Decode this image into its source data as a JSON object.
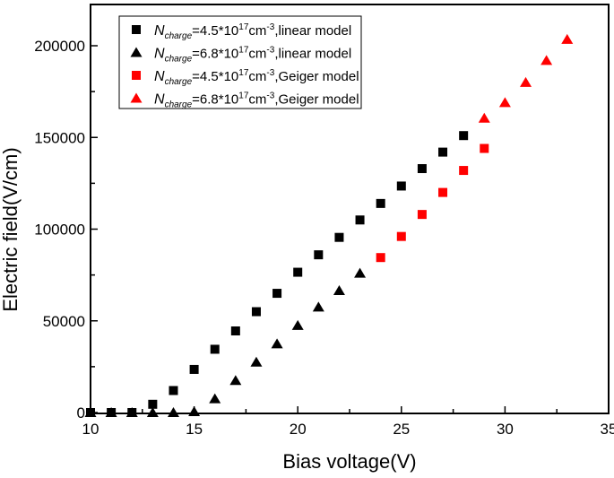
{
  "chart_data": {
    "type": "scatter",
    "title": "",
    "xlabel": "Bias voltage(V)",
    "ylabel": "Electric field(V/cm)",
    "xlim": [
      10,
      35
    ],
    "ylim": [
      0,
      200000
    ],
    "xticks": [
      10,
      15,
      20,
      25,
      30,
      35
    ],
    "yticks": [
      0,
      50000,
      100000,
      150000,
      200000
    ],
    "grid": false,
    "legend_placement": "top-left",
    "series": [
      {
        "name": "=4.5*10^17cm^-3,linear model",
        "legend_parts": {
          "sym": "N",
          "sub": "charge",
          "a": "=4.5*10",
          "sup1": "17",
          "b": "cm",
          "sup2": "-3",
          "c": ",linear model"
        },
        "marker": "square",
        "color": "#000000",
        "x": [
          10,
          11,
          12,
          13,
          14,
          15,
          16,
          17,
          18,
          19,
          20,
          21,
          22,
          23,
          24,
          25,
          26,
          27,
          28
        ],
        "y": [
          0,
          0,
          0,
          4500,
          12000,
          23500,
          34500,
          44500,
          55000,
          65000,
          76500,
          86000,
          95500,
          105000,
          114000,
          123500,
          133000,
          142000,
          151000
        ]
      },
      {
        "name": "=6.8*10^17cm^-3,linear model",
        "legend_parts": {
          "sym": "N",
          "sub": "charge",
          "a": "=6.8*10",
          "sup1": "17",
          "b": "cm",
          "sup2": "-3",
          "c": ",linear model"
        },
        "marker": "triangle",
        "color": "#000000",
        "x": [
          10,
          11,
          12,
          13,
          14,
          15,
          16,
          17,
          18,
          19,
          20,
          21,
          22,
          23
        ],
        "y": [
          0,
          0,
          0,
          0,
          0,
          500,
          7500,
          17500,
          27500,
          37500,
          47500,
          57500,
          66500,
          76000
        ]
      },
      {
        "name": "=4.5*10^17cm^-3,Geiger model",
        "legend_parts": {
          "sym": "N",
          "sub": "charge",
          "a": "=4.5*10",
          "sup1": "17",
          "b": "cm",
          "sup2": "-3",
          "c": ",Geiger model"
        },
        "marker": "square",
        "color": "#ff0000",
        "x": [
          24,
          25,
          26,
          27,
          28,
          29
        ],
        "y": [
          84500,
          96000,
          108000,
          120000,
          132000,
          144000
        ]
      },
      {
        "name": "=6.8*10^17cm^-3,Geiger model",
        "legend_parts": {
          "sym": "N",
          "sub": "charge",
          "a": "=6.8*10",
          "sup1": "17",
          "b": "cm",
          "sup2": "-3",
          "c": ",Geiger model"
        },
        "marker": "triangle",
        "color": "#ff0000",
        "x": [
          29,
          30,
          31,
          32,
          33
        ],
        "y": [
          160500,
          169000,
          180000,
          192000,
          203500
        ]
      }
    ]
  }
}
